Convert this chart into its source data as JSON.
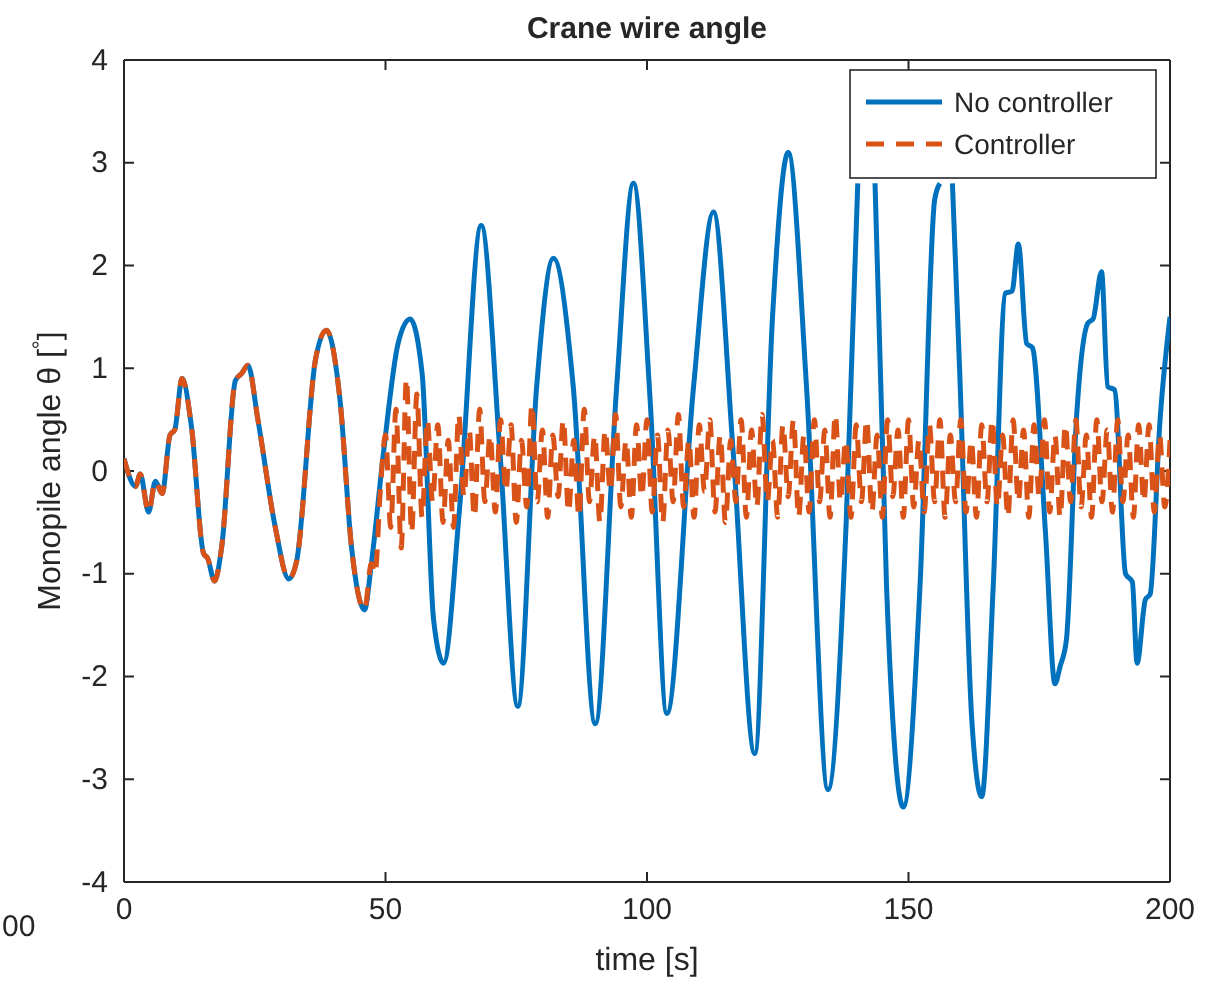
{
  "chart_data": {
    "type": "line",
    "title": "Crane wire angle",
    "xlabel": "time [s]",
    "ylabel": "Monopile angle θ [$^{°}$]",
    "annotations": [
      "00"
    ],
    "xlim": [
      0,
      200
    ],
    "xticks": [
      0,
      50,
      100,
      150,
      200
    ],
    "ylim": [
      -4,
      4
    ],
    "yticks": [
      -4,
      -3,
      -2,
      -1,
      0,
      1,
      2,
      3,
      4
    ],
    "grid": false,
    "legend": "top right",
    "series": [
      {
        "name": "No controller",
        "color": "#0072bd",
        "line_style": "solid",
        "x": [
          0,
          2.2,
          3.1,
          4.7,
          6,
          7.3,
          8.8,
          9.7,
          11.1,
          12.9,
          15.2,
          16,
          17.3,
          18.7,
          21.3,
          22.5,
          23.7,
          25.6,
          28.9,
          31.5,
          33,
          36.6,
          38.7,
          41.3,
          43.5,
          46,
          47.3,
          49.6,
          52.4,
          54.7,
          57,
          59.2,
          61.1,
          64.2,
          68.3,
          71.9,
          75.3,
          78.9,
          82.1,
          85.9,
          90.1,
          94.2,
          97.4,
          100.6,
          103.8,
          108.9,
          112.7,
          116.5,
          120.6,
          124,
          127,
          130.5,
          134.6,
          138.1,
          140.3,
          142,
          143.6,
          145.8,
          149,
          152.2,
          155,
          156,
          157,
          158.4,
          159.8,
          162.1,
          164,
          166.2,
          168.5,
          169.8,
          171,
          172.6,
          173.7,
          176.2,
          178,
          179,
          180.2,
          182.1,
          184.3,
          185.3,
          186.9,
          188.1,
          189.4,
          191.5,
          192.8,
          193.7,
          195.3,
          196.2,
          198.1,
          200
        ],
        "values": [
          0.12,
          -0.15,
          -0.03,
          -0.4,
          -0.1,
          -0.22,
          0.35,
          0.4,
          0.9,
          0.43,
          -0.8,
          -0.85,
          -1.07,
          -0.73,
          0.88,
          0.95,
          1.03,
          0.5,
          -0.54,
          -1.05,
          -0.88,
          1.08,
          1.37,
          0.69,
          -0.74,
          -1.35,
          -0.9,
          0.17,
          1.24,
          1.48,
          0.95,
          -1.45,
          -1.87,
          -0.34,
          2.39,
          0.17,
          -2.29,
          0.82,
          2.07,
          0.82,
          -2.46,
          0.82,
          2.8,
          0.69,
          -2.36,
          0.82,
          2.52,
          0.17,
          -2.75,
          1.5,
          3.1,
          0.82,
          -3.1,
          -0.48,
          2.8,
          null,
          2.8,
          -1.12,
          -3.27,
          -1.12,
          2.64,
          2.8,
          null,
          2.8,
          0.95,
          -2.42,
          -3.17,
          -1.12,
          1.73,
          1.75,
          2.21,
          1.24,
          1.2,
          -0.61,
          -2.07,
          -1.9,
          -1.64,
          0.5,
          1.44,
          1.48,
          1.94,
          0.82,
          0.79,
          -1.0,
          -1.08,
          -1.87,
          -1.25,
          -1.2,
          0.5,
          1.5
        ]
      },
      {
        "name": "Controller",
        "color": "#d95319",
        "line_style": "dashed",
        "x": [
          0,
          2.2,
          3.1,
          4.7,
          6,
          7.3,
          8.8,
          9.7,
          11.1,
          12.9,
          15.2,
          16,
          17.3,
          18.7,
          21.3,
          22.5,
          23.7,
          25.6,
          28.9,
          31.5,
          33,
          36.6,
          38.7,
          41.3,
          43.5,
          46,
          47.3,
          48,
          49,
          50,
          51,
          52,
          53,
          54,
          55,
          56,
          57,
          58,
          59,
          60,
          61,
          62,
          63,
          64,
          65,
          66,
          67,
          68,
          69,
          70,
          71,
          72,
          73,
          74,
          75,
          76,
          77,
          78,
          79,
          80,
          81,
          82,
          83,
          84,
          85,
          86,
          87,
          88,
          89,
          90,
          91,
          92,
          93,
          94,
          95,
          96,
          97,
          98,
          99,
          100,
          101,
          102,
          103,
          104,
          105,
          106,
          107,
          108,
          109,
          110,
          111,
          112,
          113,
          114,
          115,
          116,
          117,
          118,
          119,
          120,
          121,
          122,
          123,
          124,
          125,
          126,
          127,
          128,
          129,
          130,
          131,
          132,
          133,
          134,
          135,
          136,
          137,
          138,
          139,
          140,
          141,
          142,
          143,
          144,
          145,
          146,
          147,
          148,
          149,
          150,
          151,
          152,
          153,
          154,
          155,
          156,
          157,
          158,
          159,
          160,
          161,
          162,
          163,
          164,
          165,
          166,
          167,
          168,
          169,
          170,
          171,
          172,
          173,
          174,
          175,
          176,
          177,
          178,
          179,
          180,
          181,
          182,
          183,
          184,
          185,
          186,
          187,
          188,
          189,
          190,
          191,
          192,
          193,
          194,
          195,
          196,
          197,
          198,
          199,
          200
        ],
        "values": [
          0.12,
          -0.15,
          -0.03,
          -0.4,
          -0.1,
          -0.22,
          0.35,
          0.4,
          0.9,
          0.43,
          -0.8,
          -0.85,
          -1.07,
          -0.73,
          0.88,
          0.95,
          1.03,
          0.5,
          -0.54,
          -1.05,
          -0.88,
          1.08,
          1.37,
          0.69,
          -0.74,
          -1.35,
          -0.9,
          -1.0,
          -0.2,
          0.35,
          -0.55,
          0.6,
          -0.75,
          0.9,
          -0.6,
          0.75,
          -0.45,
          0.5,
          -0.3,
          0.45,
          -0.5,
          0.3,
          -0.55,
          0.55,
          -0.25,
          0.4,
          -0.45,
          0.6,
          -0.3,
          0.35,
          -0.4,
          0.5,
          -0.2,
          0.45,
          -0.5,
          0.3,
          -0.35,
          0.65,
          -0.3,
          0.4,
          -0.45,
          0.35,
          -0.25,
          0.5,
          -0.4,
          0.3,
          -0.45,
          0.6,
          -0.3,
          0.35,
          -0.5,
          0.4,
          -0.2,
          0.55,
          -0.35,
          0.3,
          -0.45,
          0.45,
          -0.25,
          0.5,
          -0.4,
          0.35,
          -0.5,
          0.4,
          -0.3,
          0.55,
          -0.35,
          0.3,
          -0.45,
          0.45,
          -0.2,
          0.5,
          -0.4,
          0.35,
          -0.5,
          0.3,
          -0.3,
          0.5,
          -0.45,
          0.4,
          -0.35,
          0.55,
          -0.3,
          0.3,
          -0.45,
          0.45,
          -0.25,
          0.5,
          -0.45,
          0.35,
          -0.4,
          0.5,
          -0.3,
          0.4,
          -0.45,
          0.55,
          -0.3,
          0.3,
          -0.45,
          0.45,
          -0.3,
          0.5,
          -0.4,
          0.35,
          -0.45,
          0.5,
          -0.25,
          0.4,
          -0.45,
          0.5,
          -0.35,
          0.3,
          -0.4,
          0.45,
          -0.3,
          0.5,
          -0.45,
          0.35,
          -0.3,
          0.5,
          -0.4,
          0.3,
          -0.45,
          0.45,
          -0.3,
          0.5,
          -0.35,
          0.35,
          -0.45,
          0.5,
          -0.3,
          0.4,
          -0.45,
          0.45,
          -0.25,
          0.5,
          -0.4,
          0.35,
          -0.45,
          0.45,
          -0.3,
          0.5,
          -0.35,
          0.35,
          -0.45,
          0.5,
          -0.3,
          0.4,
          -0.4,
          0.5,
          -0.3,
          0.35,
          -0.45,
          0.45,
          -0.3,
          0.45,
          -0.4,
          0.35,
          -0.35,
          0.3
        ]
      }
    ]
  }
}
